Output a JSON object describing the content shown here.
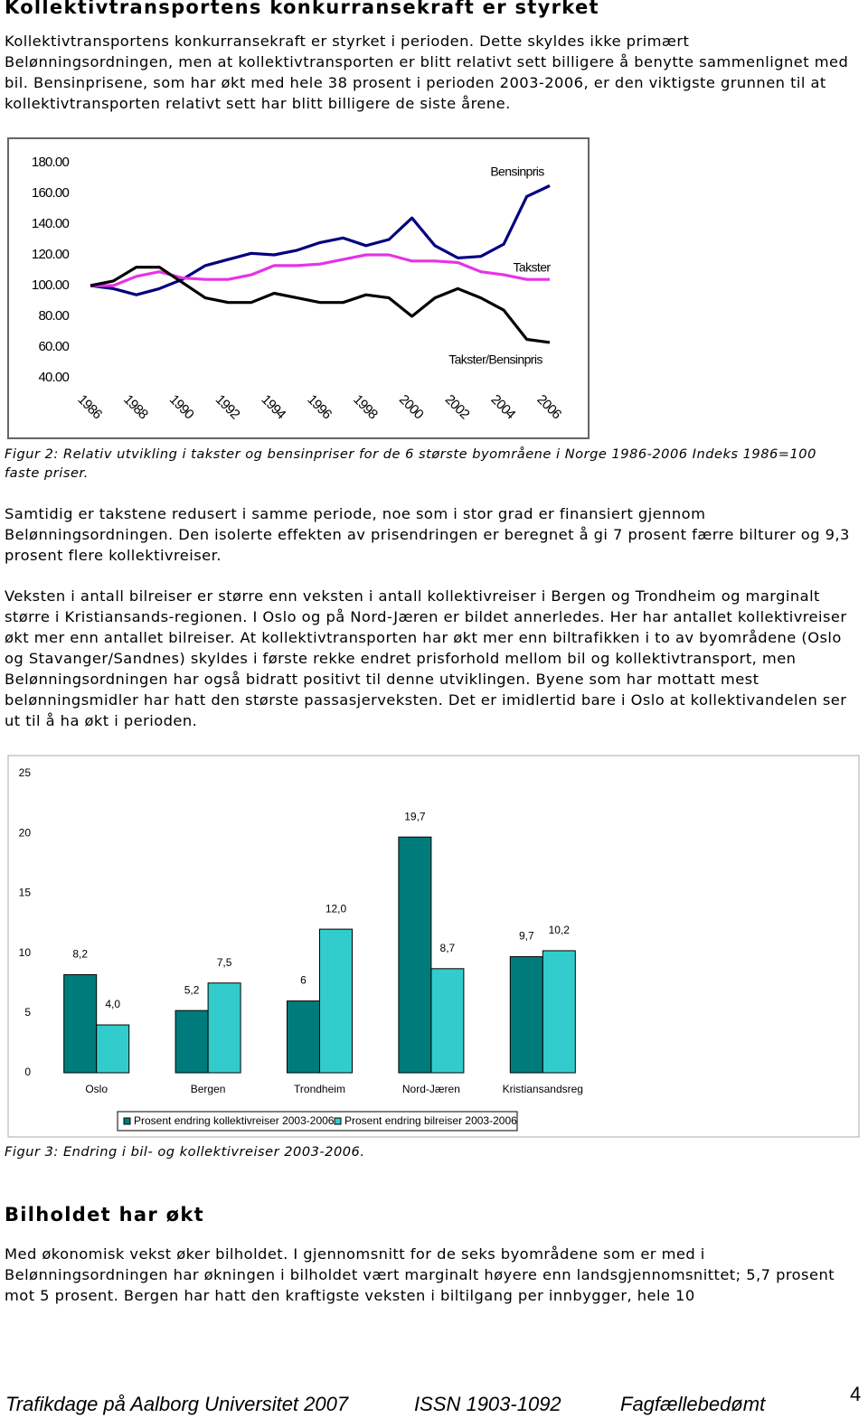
{
  "title": "Kollektivtransportens konkurransekraft er styrket",
  "para1": "Kollektivtransportens konkurransekraft er styrket i perioden. Dette skyldes ikke primært Belønningsordningen, men at kollektivtransporten er blitt relativt sett billigere å benytte sammenlignet med bil. Bensinprisene, som har økt med hele 38 prosent i perioden 2003-2006, er den viktigste grunnen til at kollektivtransporten relativt sett har blitt billigere de siste årene.",
  "figure2_caption": "Figur 2: Relativ utvikling i takster og bensinpriser for de 6 største byområene i Norge 1986-2006 Indeks 1986=100 faste priser.",
  "para2": "Samtidig er takstene redusert i samme periode, noe som i stor grad er finansiert gjennom Belønningsordningen. Den isolerte effekten av prisendringen er beregnet å gi 7 prosent færre bilturer og 9,3 prosent flere kollektivreiser.",
  "para3": "Veksten i antall bilreiser er større enn veksten i antall kollektivreiser i Bergen og Trondheim og marginalt større i Kristiansands-regionen. I Oslo og på Nord-Jæren er bildet annerledes. Her har antallet kollektivreiser økt mer enn antallet bilreiser. At kollektivtransporten har økt mer enn biltrafikken i to av byområdene (Oslo og Stavanger/Sandnes) skyldes i første rekke endret prisforhold mellom bil og kollektivtransport, men Belønningsordningen har også bidratt positivt til denne utviklingen. Byene som har mottatt mest belønningsmidler har hatt den største passasjerveksten. Det er imidlertid bare i Oslo at kollektivandelen ser ut til å ha økt i perioden.",
  "figure3_caption": "Figur 3: Endring i bil- og kollektivreiser 2003-2006.",
  "heading2": "Bilholdet har økt",
  "para4": "Med økonomisk vekst øker bilholdet. I gjennomsnitt for de seks byområdene som er med i Belønningsordningen har økningen i bilholdet vært marginalt høyere enn landsgjennomsnittet; 5,7 prosent mot 5 prosent. Bergen har hatt den kraftigste veksten i biltilgang per innbygger, hele 10",
  "footer": {
    "left": "Trafikdage på Aalborg Universitet 2007",
    "center": "ISSN 1903-1092",
    "right": "Fagfællebedømt",
    "page": "4"
  },
  "chart_data": [
    {
      "type": "line",
      "x": [
        1986,
        1987,
        1988,
        1989,
        1990,
        1991,
        1992,
        1993,
        1994,
        1995,
        1996,
        1997,
        1998,
        1999,
        2000,
        2001,
        2002,
        2003,
        2004,
        2005,
        2006
      ],
      "xlim": [
        1986,
        2006
      ],
      "xticks": [
        1986,
        1988,
        1990,
        1992,
        1994,
        1996,
        1998,
        2000,
        2002,
        2004,
        2006
      ],
      "ylim": [
        40,
        180
      ],
      "yticks": [
        {
          "value": 180,
          "label": "180.00"
        },
        {
          "value": 160,
          "label": "160.00"
        },
        {
          "value": 140,
          "label": "140.00"
        },
        {
          "value": 120,
          "label": "120.00"
        },
        {
          "value": 100,
          "label": "100.00"
        },
        {
          "value": 80,
          "label": "80.00"
        },
        {
          "value": 60,
          "label": "60.00"
        },
        {
          "value": 40,
          "label": "40.00"
        }
      ],
      "grid": false,
      "series": [
        {
          "name": "Bensinpris",
          "color": "#000080",
          "values": [
            100,
            98,
            94,
            98,
            104,
            113,
            117,
            121,
            120,
            123,
            128,
            131,
            126,
            130,
            144,
            126,
            118,
            119,
            127,
            158,
            165
          ]
        },
        {
          "name": "Takster",
          "color": "#e633e6",
          "values": [
            100,
            100,
            106,
            109,
            105,
            104,
            104,
            107,
            113,
            113,
            114,
            117,
            120,
            120,
            116,
            116,
            115,
            109,
            107,
            104,
            104
          ]
        },
        {
          "name": "Takster/Bensinpris",
          "color": "#000000",
          "values": [
            100,
            103,
            112,
            112,
            102,
            92,
            89,
            89,
            95,
            92,
            89,
            89,
            94,
            92,
            80,
            92,
            98,
            92,
            84,
            65,
            63
          ]
        }
      ]
    },
    {
      "type": "bar",
      "categories": [
        "Oslo",
        "Bergen",
        "Trondheim",
        "Nord-Jæren",
        "Kristiansandsreg"
      ],
      "ylim": [
        0,
        25
      ],
      "yticks": [
        0,
        5,
        10,
        15,
        20,
        25
      ],
      "grid": false,
      "legend": "bottom",
      "series": [
        {
          "name": "Prosent endring kollektivreiser 2003-2006",
          "color": "#007b7b",
          "values": [
            8.2,
            5.2,
            6,
            19.7,
            9.7
          ],
          "value_labels": [
            "8,2",
            "5,2",
            "6",
            "19,7",
            "9,7"
          ]
        },
        {
          "name": "Prosent endring bilreiser 2003-2006",
          "color": "#33cccc",
          "values": [
            4.0,
            7.5,
            12.0,
            8.7,
            10.2
          ],
          "value_labels": [
            "4,0",
            "7,5",
            "12,0",
            "8,7",
            "10,2"
          ]
        }
      ]
    }
  ]
}
